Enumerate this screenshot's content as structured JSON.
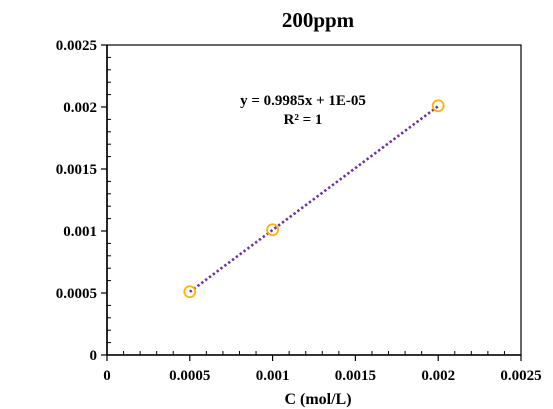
{
  "chart_data": {
    "type": "scatter",
    "title": "200ppm",
    "xlabel": "C (mol/L)",
    "ylabel": "",
    "xlim": [
      0,
      0.0025
    ],
    "ylim": [
      0,
      0.0025
    ],
    "x_ticks": [
      0,
      0.0005,
      0.001,
      0.0015,
      0.002,
      0.0025
    ],
    "x_tick_labels": [
      "0",
      "0.0005",
      "0.001",
      "0.0015",
      "0.002",
      "0.0025"
    ],
    "y_ticks": [
      0,
      0.0005,
      0.001,
      0.0015,
      0.002,
      0.0025
    ],
    "y_tick_labels": [
      "0",
      "0.0005",
      "0.001",
      "0.0015",
      "0.002",
      "0.0025"
    ],
    "grid": false,
    "series": [
      {
        "x": [
          0.0005,
          0.001,
          0.002
        ],
        "y": [
          0.00051,
          0.00101,
          0.00201
        ],
        "marker": "circle-open",
        "color": "#FFB300"
      }
    ],
    "trendline": {
      "type": "linear",
      "slope": 0.9985,
      "intercept": 1e-05,
      "x_range": [
        0.0005,
        0.002
      ],
      "style": "dotted",
      "color": "#7030A0"
    },
    "annotations": {
      "equation": "y = 0.9985x + 1E-05",
      "r_squared": "R² = 1"
    }
  }
}
